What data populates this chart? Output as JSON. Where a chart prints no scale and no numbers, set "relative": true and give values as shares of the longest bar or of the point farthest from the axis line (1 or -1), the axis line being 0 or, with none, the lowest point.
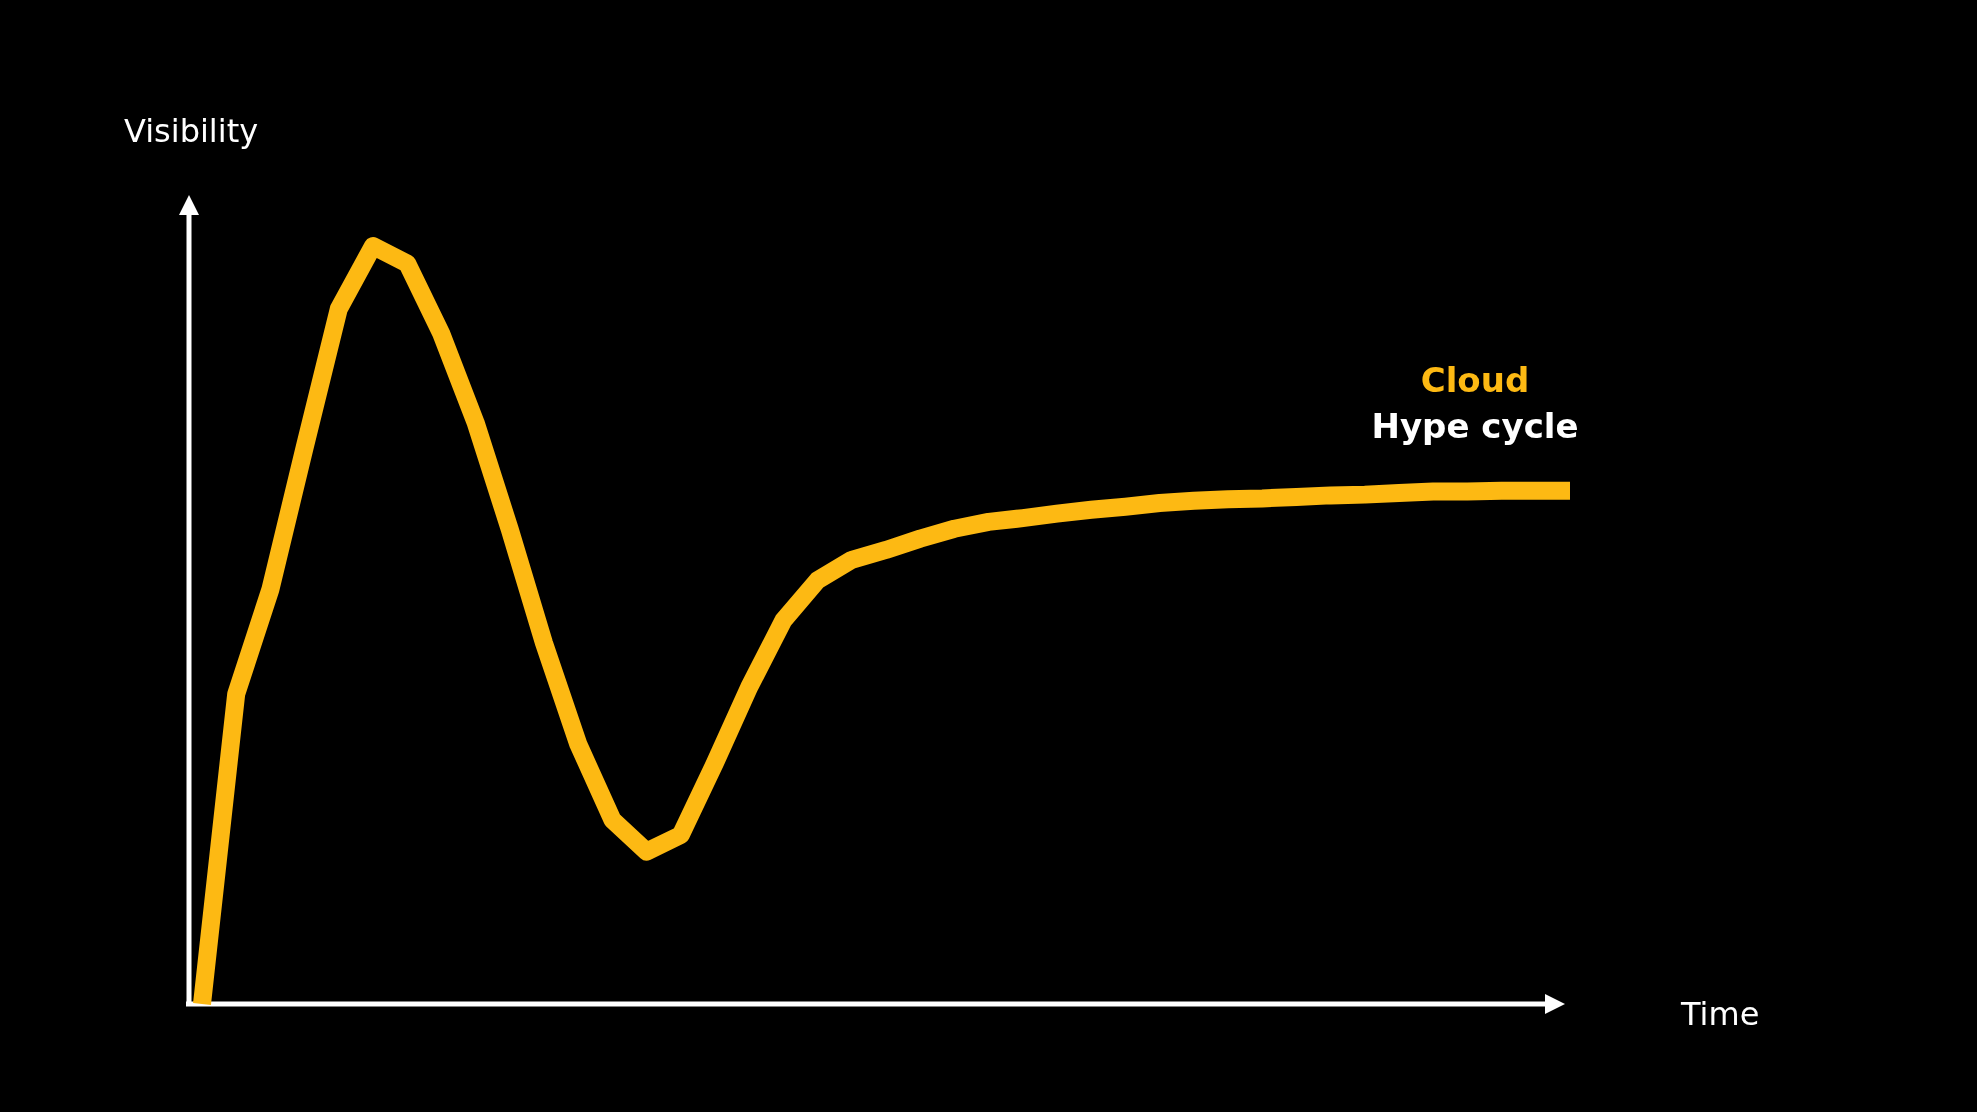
{
  "chart_data": {
    "type": "line",
    "relative": true,
    "xlabel": "Time",
    "ylabel": "Visibility",
    "marker": "none",
    "line_style": "solid",
    "annotations": [
      "Hype cycle"
    ],
    "categories": [
      null,
      null,
      null,
      null,
      null,
      null,
      null,
      null,
      null,
      null,
      null,
      null,
      null,
      null,
      null,
      null,
      null,
      null,
      null,
      null,
      null,
      null,
      null,
      null,
      null,
      null,
      null,
      null,
      null,
      null,
      null,
      null,
      null,
      null,
      null,
      null,
      null,
      null,
      null,
      null,
      null
    ],
    "series": [
      {
        "name": "Cloud",
        "color": "#fdb913",
        "values": [
          0,
          0.409,
          0.547,
          0.734,
          0.917,
          1,
          0.977,
          0.884,
          0.767,
          0.626,
          0.476,
          0.343,
          0.243,
          0.201,
          0.223,
          0.318,
          0.418,
          0.506,
          0.559,
          0.586,
          0.599,
          0.614,
          0.627,
          0.636,
          0.641,
          0.647,
          0.652,
          0.656,
          0.661,
          0.664,
          0.666,
          0.667,
          0.669,
          0.671,
          0.672,
          0.674,
          0.676,
          0.676,
          0.677,
          0.677,
          0.677
        ]
      }
    ]
  }
}
